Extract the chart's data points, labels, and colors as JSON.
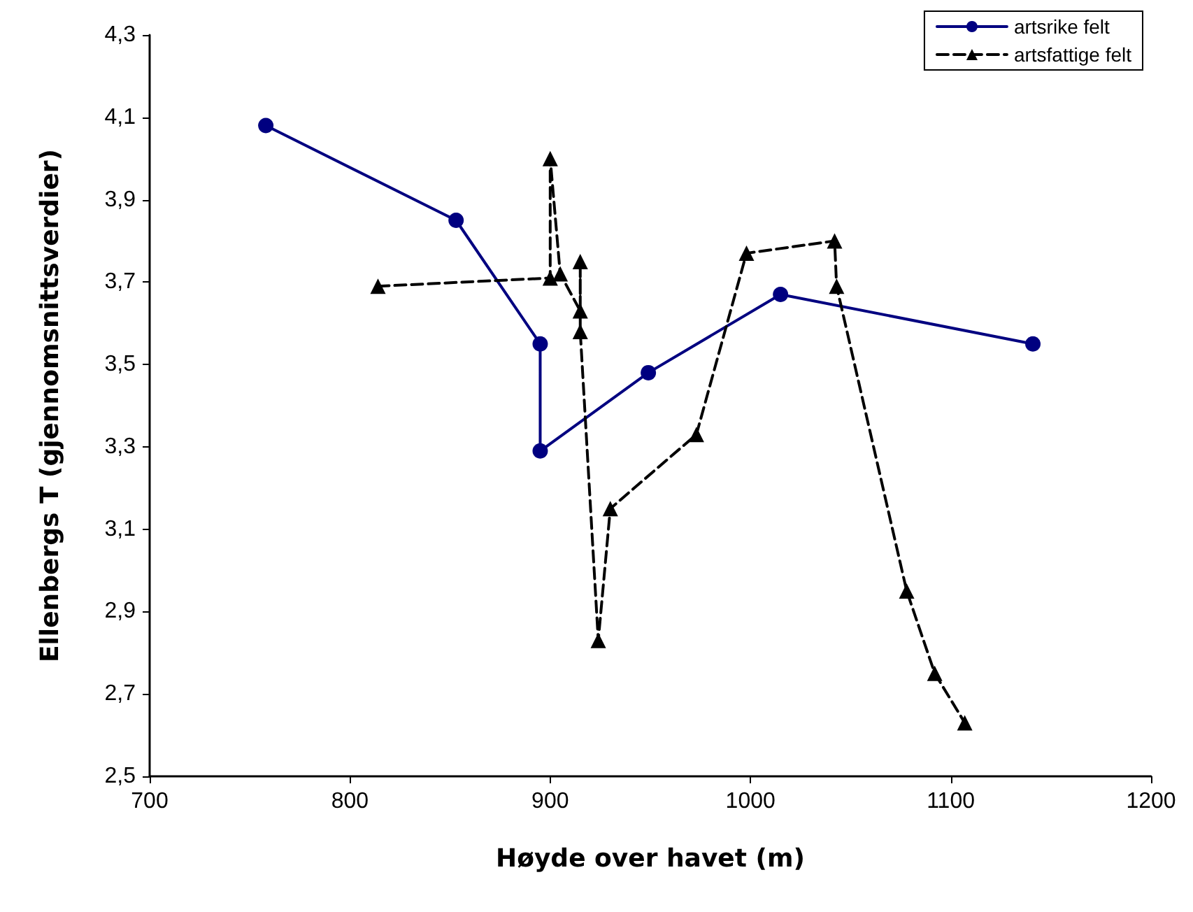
{
  "chart_data": {
    "type": "line",
    "xlabel": "Høyde over havet (m)",
    "ylabel": "Ellenbergs T (gjennomsnittsverdier)",
    "xlim": [
      700,
      1200
    ],
    "xticks": [
      700,
      800,
      900,
      1000,
      1100,
      1200
    ],
    "ylim": [
      2.5,
      4.3
    ],
    "yticks": [
      {
        "value": 2.5,
        "label": "2,5"
      },
      {
        "value": 2.7,
        "label": "2,7"
      },
      {
        "value": 2.9,
        "label": "2,9"
      },
      {
        "value": 3.1,
        "label": "3,1"
      },
      {
        "value": 3.3,
        "label": "3,3"
      },
      {
        "value": 3.5,
        "label": "3,5"
      },
      {
        "value": 3.7,
        "label": "3,7"
      },
      {
        "value": 3.9,
        "label": "3,9"
      },
      {
        "value": 4.1,
        "label": "4,1"
      },
      {
        "value": 4.3,
        "label": "4,3"
      }
    ],
    "grid": false,
    "legend": "top right",
    "series": [
      {
        "name": "artsrike felt",
        "color": "#000080",
        "marker": "circle",
        "line_style": "solid",
        "x": [
          758,
          853,
          895,
          895,
          949,
          1015,
          1141
        ],
        "values": [
          4.08,
          3.85,
          3.55,
          3.29,
          3.48,
          3.67,
          3.55
        ]
      },
      {
        "name": "artsfattige felt",
        "color": "#000000",
        "marker": "triangle",
        "line_style": "dashed",
        "x": [
          814,
          900,
          900,
          905,
          915,
          915,
          915,
          924,
          930,
          973,
          998,
          1042,
          1043,
          1078,
          1092,
          1107
        ],
        "values": [
          3.69,
          3.71,
          4.0,
          3.72,
          3.63,
          3.75,
          3.58,
          2.83,
          3.15,
          3.33,
          3.77,
          3.8,
          3.69,
          2.95,
          2.75,
          2.63
        ]
      }
    ]
  }
}
